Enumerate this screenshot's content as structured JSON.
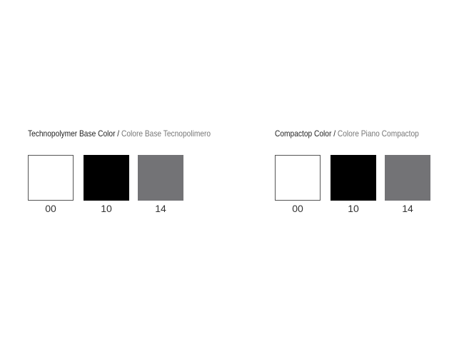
{
  "groups": [
    {
      "title_en": "Technopolymer Base Color /",
      "title_it": " Colore Base Tecnopolimero",
      "swatches": [
        {
          "code": "00",
          "color": "#ffffff"
        },
        {
          "code": "10",
          "color": "#000000"
        },
        {
          "code": "14",
          "color": "#737376"
        }
      ]
    },
    {
      "title_en": "Compactop Color /",
      "title_it": " Colore Piano Compactop",
      "swatches": [
        {
          "code": "00",
          "color": "#ffffff"
        },
        {
          "code": "10",
          "color": "#000000"
        },
        {
          "code": "14",
          "color": "#737376"
        }
      ]
    }
  ]
}
